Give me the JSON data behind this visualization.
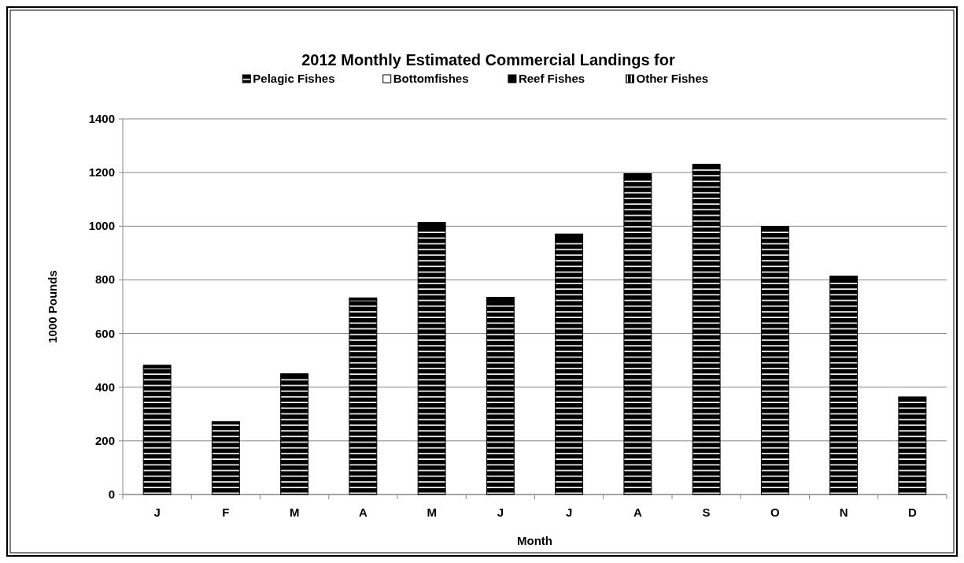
{
  "chart_data": {
    "type": "bar",
    "title": "2012 Monthly Estimated Commercial Landings for",
    "xlabel": "Month",
    "ylabel": "1000 Pounds",
    "categories": [
      "J",
      "F",
      "M",
      "A",
      "M",
      "J",
      "J",
      "A",
      "S",
      "O",
      "N",
      "D"
    ],
    "stacked": true,
    "series": [
      {
        "name": "Pelagic Fishes",
        "color": "#000000",
        "values": [
          472,
          264,
          442,
          725,
          994,
          720,
          953,
          1181,
          1216,
          991,
          804,
          356
        ]
      },
      {
        "name": "Bottomfishes",
        "color": "#ffffff",
        "values": [
          null,
          null,
          null,
          null,
          null,
          null,
          null,
          null,
          null,
          null,
          null,
          null
        ]
      },
      {
        "name": "Reef Fishes",
        "color": "#000000",
        "values": [
          10,
          8,
          8,
          8,
          20,
          15,
          18,
          15,
          15,
          8,
          10,
          8
        ]
      },
      {
        "name": "Other Fishes",
        "color": "#000000",
        "values": [
          null,
          null,
          null,
          null,
          null,
          null,
          null,
          null,
          null,
          null,
          null,
          null
        ]
      }
    ],
    "ylim": [
      0,
      1400
    ],
    "yticks": [
      0,
      200,
      400,
      600,
      800,
      1000,
      1200,
      1400
    ],
    "grid": "y",
    "legend": "top"
  }
}
